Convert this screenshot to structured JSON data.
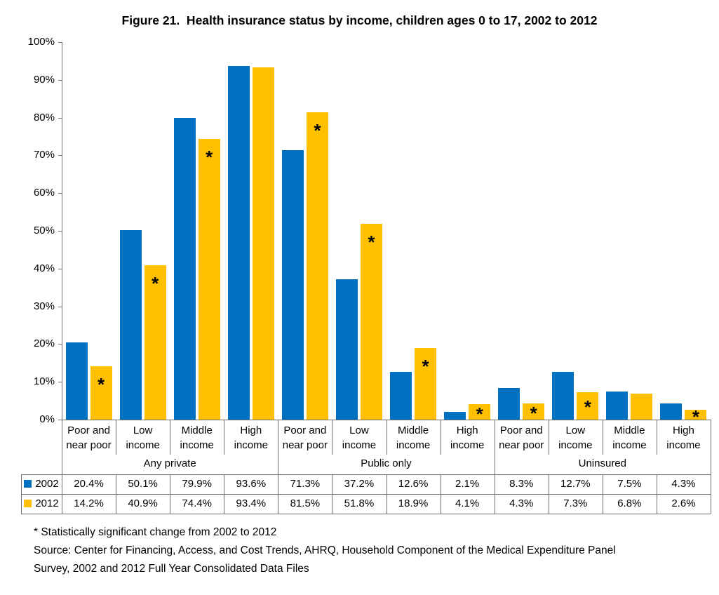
{
  "title": "Figure 21.  Health insurance status by income, children ages 0 to 17, 2002 to 2012",
  "chart_data": {
    "type": "bar",
    "title": "Figure 21.  Health insurance status by income, children ages 0 to 17, 2002 to 2012",
    "ylim": [
      0,
      100
    ],
    "y_ticks": [
      0,
      10,
      20,
      30,
      40,
      50,
      60,
      70,
      80,
      90,
      100
    ],
    "y_tick_suffix": "%",
    "grid": false,
    "legend_position": "table-left",
    "categories": [
      "Poor and near poor",
      "Low income",
      "Middle income",
      "High income",
      "Poor and near poor",
      "Low income",
      "Middle income",
      "High income",
      "Poor and near poor",
      "Low income",
      "Middle income",
      "High income"
    ],
    "groups": [
      {
        "label": "Any private",
        "span": 4
      },
      {
        "label": "Public only",
        "span": 4
      },
      {
        "label": "Uninsured",
        "span": 4
      }
    ],
    "series": [
      {
        "name": "2002",
        "color": "#0070C0",
        "values": [
          20.4,
          50.1,
          79.9,
          93.6,
          71.3,
          37.2,
          12.6,
          2.1,
          8.3,
          12.7,
          7.5,
          4.3
        ]
      },
      {
        "name": "2012",
        "color": "#FFC000",
        "values": [
          14.2,
          40.9,
          74.4,
          93.4,
          81.5,
          51.8,
          18.9,
          4.1,
          4.3,
          7.3,
          6.8,
          2.6
        ],
        "significant": [
          true,
          true,
          true,
          false,
          true,
          true,
          true,
          true,
          true,
          true,
          false,
          true
        ]
      }
    ],
    "significance_marker": "*",
    "value_suffix": "%"
  },
  "footnotes": {
    "significance": "* Statistically significant change from 2002 to 2012",
    "source": "Source: Center for Financing, Access, and Cost Trends, AHRQ, Household Component of the Medical Expenditure Panel Survey, 2002 and 2012 Full Year Consolidated Data Files"
  },
  "colors": {
    "series_2002": "#0070C0",
    "series_2012": "#FFC000",
    "axis_line": "#6E6E6E",
    "table_border": "#6E6E6E",
    "marker": "#000000"
  }
}
